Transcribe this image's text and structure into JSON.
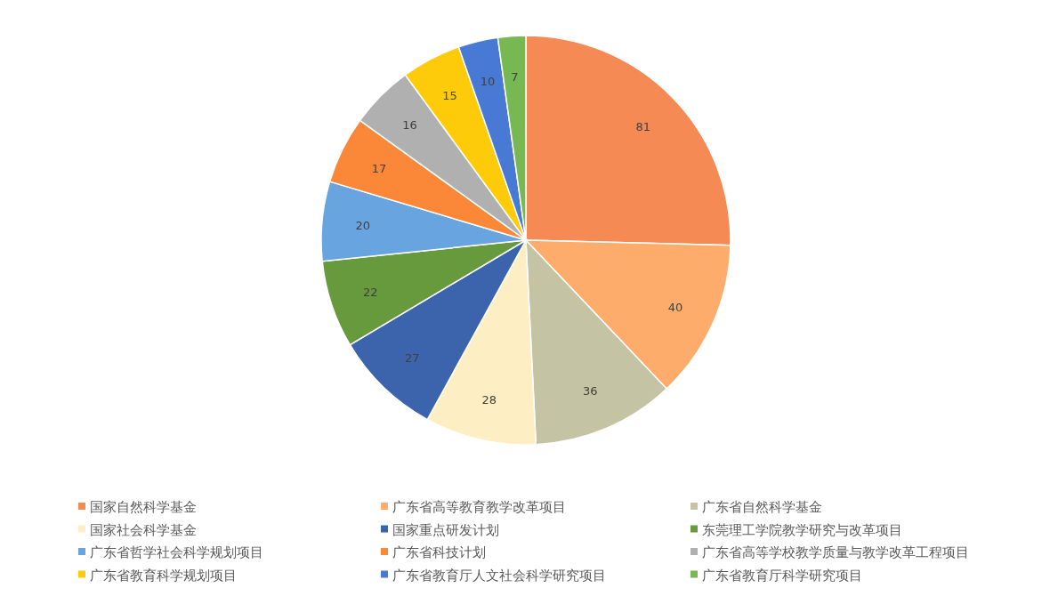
{
  "chart_data": {
    "type": "pie",
    "categories": [
      "国家自然科学基金",
      "广东省高等教育教学改革项目",
      "广东省自然科学基金",
      "国家社会科学基金",
      "国家重点研发计划",
      "东莞理工学院教学研究与改革项目",
      "广东省哲学社会科学规划项目",
      "广东省科技计划",
      "广东省高等学校教学质量与教学改革工程项目",
      "广东省教育科学规划项目",
      "广东省教育厅人文社会科学研究项目",
      "广东省教育厅科学研究项目"
    ],
    "values": [
      81,
      40,
      36,
      28,
      27,
      22,
      20,
      17,
      16,
      15,
      10,
      7
    ],
    "colors": [
      "#f68a55",
      "#fdac6c",
      "#c4c4a4",
      "#fdeec3",
      "#3c64ad",
      "#669a3d",
      "#67a4e0",
      "#fb8838",
      "#b0b0b0",
      "#fecb0a",
      "#4879d4",
      "#78b853"
    ],
    "data_labels": true,
    "legend": "bottom"
  }
}
